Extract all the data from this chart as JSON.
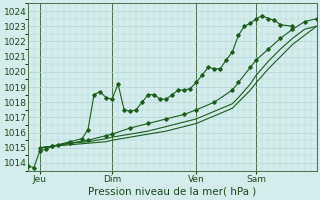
{
  "title": "Pression niveau de la mer( hPa )",
  "ylabel_values": [
    1014,
    1015,
    1016,
    1017,
    1018,
    1019,
    1020,
    1021,
    1022,
    1023,
    1024
  ],
  "ylim": [
    1013.5,
    1024.5
  ],
  "xlim": [
    0,
    96
  ],
  "xtick_positions": [
    4,
    28,
    56,
    76
  ],
  "xtick_labels": [
    "Jeu",
    "Dim",
    "Ven",
    "Sam"
  ],
  "vlines": [
    4,
    28,
    56,
    76
  ],
  "bg_color": "#d4ecec",
  "grid_color": "#aed4d4",
  "line_color": "#1a5c1a",
  "series1_marked": [
    [
      0,
      1013.8
    ],
    [
      2,
      1013.7
    ],
    [
      4,
      1014.8
    ],
    [
      6,
      1014.9
    ],
    [
      8,
      1015.1
    ],
    [
      10,
      1015.2
    ],
    [
      14,
      1015.4
    ],
    [
      18,
      1015.6
    ],
    [
      20,
      1016.2
    ],
    [
      22,
      1018.5
    ],
    [
      24,
      1018.7
    ],
    [
      26,
      1018.3
    ],
    [
      28,
      1018.2
    ],
    [
      30,
      1019.2
    ],
    [
      32,
      1017.5
    ],
    [
      34,
      1017.4
    ],
    [
      36,
      1017.5
    ],
    [
      38,
      1018.0
    ],
    [
      40,
      1018.5
    ],
    [
      42,
      1018.5
    ],
    [
      44,
      1018.2
    ],
    [
      46,
      1018.2
    ],
    [
      48,
      1018.5
    ],
    [
      50,
      1018.8
    ],
    [
      52,
      1018.8
    ],
    [
      54,
      1018.9
    ],
    [
      56,
      1019.3
    ],
    [
      58,
      1019.8
    ],
    [
      60,
      1020.3
    ],
    [
      62,
      1020.2
    ],
    [
      64,
      1020.2
    ],
    [
      66,
      1020.8
    ],
    [
      68,
      1021.3
    ],
    [
      70,
      1022.4
    ],
    [
      72,
      1023.0
    ],
    [
      74,
      1023.2
    ],
    [
      76,
      1023.5
    ],
    [
      78,
      1023.7
    ],
    [
      80,
      1023.5
    ],
    [
      82,
      1023.4
    ],
    [
      84,
      1023.1
    ],
    [
      88,
      1023.0
    ]
  ],
  "series2_smooth": [
    [
      4,
      1015.0
    ],
    [
      8,
      1015.1
    ],
    [
      14,
      1015.3
    ],
    [
      20,
      1015.5
    ],
    [
      26,
      1015.8
    ],
    [
      28,
      1015.9
    ],
    [
      34,
      1016.3
    ],
    [
      40,
      1016.6
    ],
    [
      46,
      1016.9
    ],
    [
      52,
      1017.2
    ],
    [
      56,
      1017.5
    ],
    [
      62,
      1018.0
    ],
    [
      68,
      1018.8
    ],
    [
      70,
      1019.3
    ],
    [
      74,
      1020.3
    ],
    [
      76,
      1020.8
    ],
    [
      80,
      1021.5
    ],
    [
      84,
      1022.2
    ],
    [
      88,
      1022.8
    ],
    [
      92,
      1023.3
    ],
    [
      96,
      1023.5
    ]
  ],
  "series3_smooth": [
    [
      4,
      1015.0
    ],
    [
      8,
      1015.1
    ],
    [
      14,
      1015.3
    ],
    [
      20,
      1015.4
    ],
    [
      26,
      1015.6
    ],
    [
      28,
      1015.7
    ],
    [
      34,
      1015.9
    ],
    [
      40,
      1016.1
    ],
    [
      46,
      1016.4
    ],
    [
      52,
      1016.7
    ],
    [
      56,
      1016.9
    ],
    [
      62,
      1017.4
    ],
    [
      68,
      1017.9
    ],
    [
      70,
      1018.3
    ],
    [
      74,
      1019.2
    ],
    [
      76,
      1019.8
    ],
    [
      80,
      1020.7
    ],
    [
      84,
      1021.5
    ],
    [
      88,
      1022.2
    ],
    [
      92,
      1022.8
    ],
    [
      96,
      1023.0
    ]
  ],
  "series4_smooth": [
    [
      4,
      1015.0
    ],
    [
      8,
      1015.1
    ],
    [
      14,
      1015.2
    ],
    [
      20,
      1015.3
    ],
    [
      26,
      1015.4
    ],
    [
      28,
      1015.5
    ],
    [
      34,
      1015.7
    ],
    [
      40,
      1015.9
    ],
    [
      46,
      1016.1
    ],
    [
      52,
      1016.4
    ],
    [
      56,
      1016.6
    ],
    [
      62,
      1017.1
    ],
    [
      68,
      1017.6
    ],
    [
      70,
      1018.0
    ],
    [
      74,
      1018.8
    ],
    [
      76,
      1019.3
    ],
    [
      80,
      1020.2
    ],
    [
      84,
      1021.0
    ],
    [
      88,
      1021.8
    ],
    [
      92,
      1022.4
    ],
    [
      96,
      1023.0
    ]
  ]
}
